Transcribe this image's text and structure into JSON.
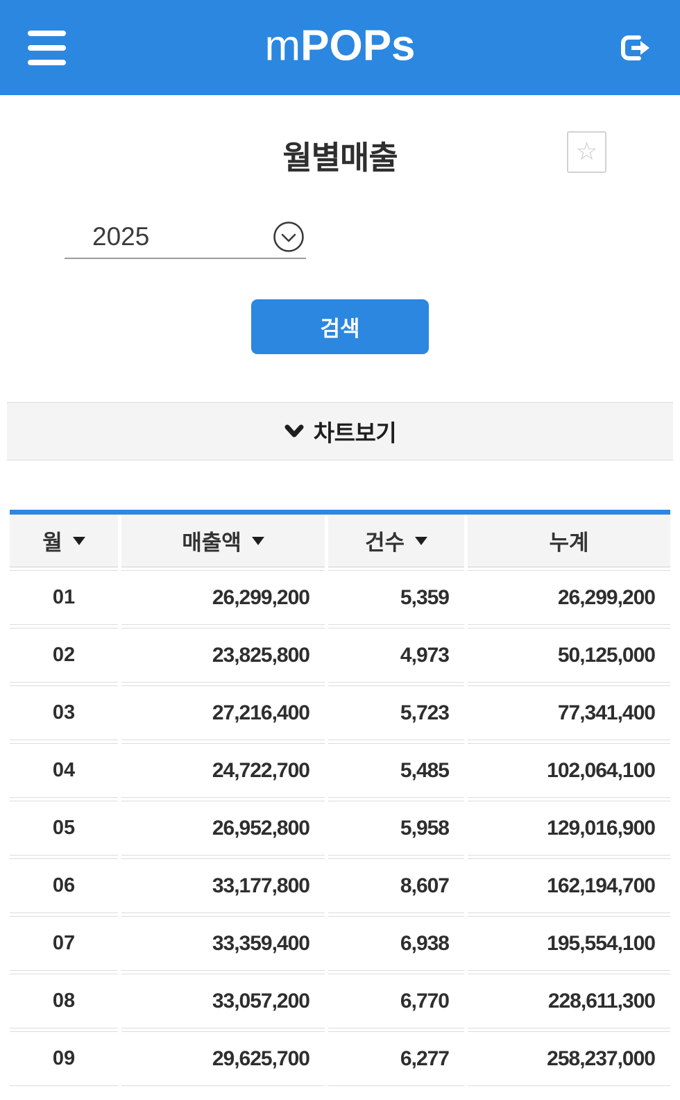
{
  "appbar": {
    "app_title_light": "m",
    "app_title_bold": "POPs"
  },
  "page": {
    "title": "월별매출"
  },
  "filters": {
    "year": "2025"
  },
  "actions": {
    "search_label": "검색",
    "chart_toggle_label": "차트보기"
  },
  "icons": {
    "favorite_star": "☆"
  },
  "colors": {
    "primary_blue": "#2b87e0",
    "panel_gray": "#f4f4f4",
    "text_dark": "#2b2b2b"
  },
  "table": {
    "columns": [
      {
        "label": "월",
        "sortable": true
      },
      {
        "label": "매출액",
        "sortable": true
      },
      {
        "label": "건수",
        "sortable": true
      },
      {
        "label": "누계",
        "sortable": false
      }
    ],
    "rows": [
      {
        "month": "01",
        "sales": "26,299,200",
        "count": "5,359",
        "cumulative": "26,299,200"
      },
      {
        "month": "02",
        "sales": "23,825,800",
        "count": "4,973",
        "cumulative": "50,125,000"
      },
      {
        "month": "03",
        "sales": "27,216,400",
        "count": "5,723",
        "cumulative": "77,341,400"
      },
      {
        "month": "04",
        "sales": "24,722,700",
        "count": "5,485",
        "cumulative": "102,064,100"
      },
      {
        "month": "05",
        "sales": "26,952,800",
        "count": "5,958",
        "cumulative": "129,016,900"
      },
      {
        "month": "06",
        "sales": "33,177,800",
        "count": "8,607",
        "cumulative": "162,194,700"
      },
      {
        "month": "07",
        "sales": "33,359,400",
        "count": "6,938",
        "cumulative": "195,554,100"
      },
      {
        "month": "08",
        "sales": "33,057,200",
        "count": "6,770",
        "cumulative": "228,611,300"
      },
      {
        "month": "09",
        "sales": "29,625,700",
        "count": "6,277",
        "cumulative": "258,237,000"
      }
    ]
  }
}
